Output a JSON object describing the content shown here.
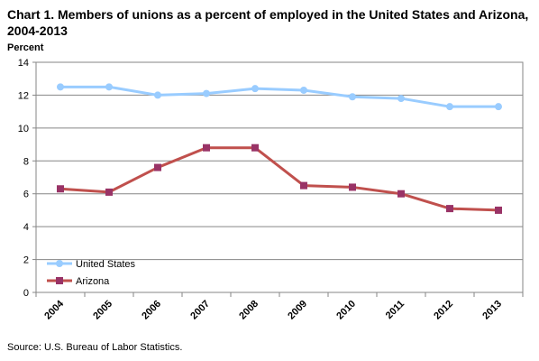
{
  "chart_data": {
    "type": "line",
    "title": "Chart 1. Members of unions as a percent of employed in the United States and Arizona, 2004-2013",
    "ylabel": "Percent",
    "xlabel": "",
    "source": "Source: U.S. Bureau of Labor Statistics.",
    "categories": [
      "2004",
      "2005",
      "2006",
      "2007",
      "2008",
      "2009",
      "2010",
      "2011",
      "2012",
      "2013"
    ],
    "ylim": [
      0,
      14
    ],
    "yticks": [
      0,
      2,
      4,
      6,
      8,
      10,
      12,
      14
    ],
    "grid": true,
    "legend_position": "bottom-left",
    "series": [
      {
        "name": "United States",
        "color": "#99ccff",
        "marker": "circle",
        "values": [
          12.5,
          12.5,
          12.0,
          12.1,
          12.4,
          12.3,
          11.9,
          11.8,
          11.3,
          11.3
        ]
      },
      {
        "name": "Arizona",
        "color": "#c0504d",
        "marker_color": "#993366",
        "marker": "square",
        "values": [
          6.3,
          6.1,
          7.6,
          8.8,
          8.8,
          6.5,
          6.4,
          6.0,
          5.1,
          5.0
        ]
      }
    ]
  }
}
